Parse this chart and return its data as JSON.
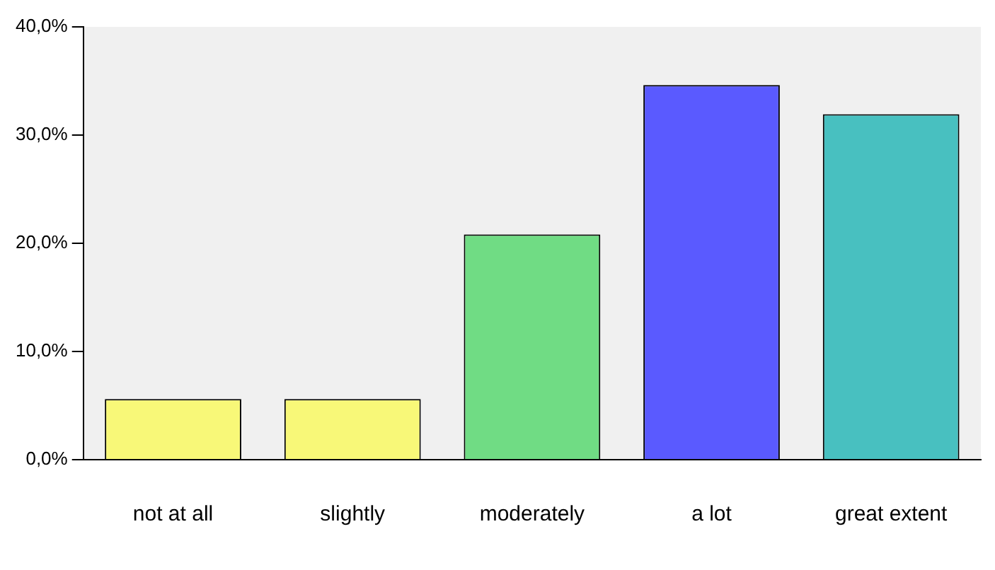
{
  "chart_data": {
    "type": "bar",
    "categories": [
      "not at all",
      "slightly",
      "moderately",
      "a lot",
      "great extent"
    ],
    "values": [
      5.6,
      5.6,
      20.8,
      34.6,
      31.9
    ],
    "colors": [
      "#f8f878",
      "#f8f878",
      "#70dc84",
      "#5a5aff",
      "#48c0c0"
    ],
    "ylim": [
      0,
      40
    ],
    "yticks": [
      {
        "value": 0,
        "label": "0,0%"
      },
      {
        "value": 10,
        "label": "10,0%"
      },
      {
        "value": 20,
        "label": "20,0%"
      },
      {
        "value": 30,
        "label": "30,0%"
      },
      {
        "value": 40,
        "label": "40,0%"
      }
    ],
    "grid": false
  }
}
